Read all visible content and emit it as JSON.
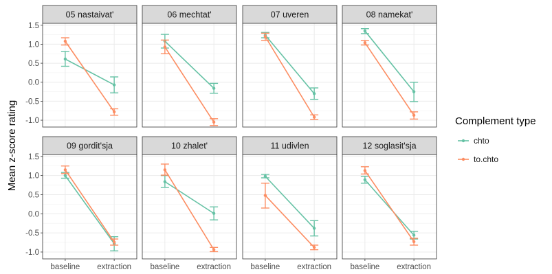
{
  "chart_data": {
    "type": "line",
    "ylabel": "Mean z-score rating",
    "xlabel": "",
    "categories": [
      "baseline",
      "extraction"
    ],
    "y_ticks": [
      1.5,
      1.0,
      0.5,
      0.0,
      -0.5,
      -1.0
    ],
    "y_tick_labels": [
      "1.5",
      "1.0",
      "0.5",
      "0.0",
      "-0.5",
      "-1.0"
    ],
    "ylim": [
      -1.18,
      1.55
    ],
    "grid": true,
    "legend": {
      "title": "Complement type",
      "position": "right",
      "entries": [
        "chto",
        "to.chto"
      ]
    },
    "colors": {
      "chto": "#66c2a5",
      "to.chto": "#fc8d62"
    },
    "panels": [
      {
        "title": "05 nastaivat'",
        "series": [
          {
            "name": "chto",
            "values": [
              0.61,
              -0.07
            ],
            "lower": [
              0.42,
              -0.28
            ],
            "upper": [
              0.81,
              0.14
            ]
          },
          {
            "name": "to.chto",
            "values": [
              1.08,
              -0.78
            ],
            "lower": [
              0.98,
              -0.87
            ],
            "upper": [
              1.17,
              -0.7
            ]
          }
        ]
      },
      {
        "title": "06 mechtat'",
        "series": [
          {
            "name": "chto",
            "values": [
              1.08,
              -0.16
            ],
            "lower": [
              0.9,
              -0.29
            ],
            "upper": [
              1.26,
              -0.03
            ]
          },
          {
            "name": "to.chto",
            "values": [
              0.93,
              -1.05
            ],
            "lower": [
              0.75,
              -1.14
            ],
            "upper": [
              1.11,
              -0.96
            ]
          }
        ]
      },
      {
        "title": "07 uveren",
        "series": [
          {
            "name": "chto",
            "values": [
              1.24,
              -0.3
            ],
            "lower": [
              1.17,
              -0.45
            ],
            "upper": [
              1.31,
              -0.15
            ]
          },
          {
            "name": "to.chto",
            "values": [
              1.2,
              -0.92
            ],
            "lower": [
              1.1,
              -0.98
            ],
            "upper": [
              1.29,
              -0.86
            ]
          }
        ]
      },
      {
        "title": "08 namekat'",
        "series": [
          {
            "name": "chto",
            "values": [
              1.35,
              -0.25
            ],
            "lower": [
              1.28,
              -0.51
            ],
            "upper": [
              1.41,
              0.0
            ]
          },
          {
            "name": "to.chto",
            "values": [
              1.04,
              -0.87
            ],
            "lower": [
              0.98,
              -0.97
            ],
            "upper": [
              1.1,
              -0.78
            ]
          }
        ]
      },
      {
        "title": "09 gordit'sja",
        "series": [
          {
            "name": "chto",
            "values": [
              1.0,
              -0.78
            ],
            "lower": [
              0.93,
              -0.97
            ],
            "upper": [
              1.08,
              -0.6
            ]
          },
          {
            "name": "to.chto",
            "values": [
              1.15,
              -0.74
            ],
            "lower": [
              1.05,
              -0.82
            ],
            "upper": [
              1.25,
              -0.66
            ]
          }
        ]
      },
      {
        "title": "10 zhalet'",
        "series": [
          {
            "name": "chto",
            "values": [
              0.84,
              0.01
            ],
            "lower": [
              0.69,
              -0.16
            ],
            "upper": [
              1.0,
              0.18
            ]
          },
          {
            "name": "to.chto",
            "values": [
              1.15,
              -0.94
            ],
            "lower": [
              1.01,
              -0.99
            ],
            "upper": [
              1.3,
              -0.88
            ]
          }
        ]
      },
      {
        "title": "11 udivlen",
        "series": [
          {
            "name": "chto",
            "values": [
              0.98,
              -0.38
            ],
            "lower": [
              0.94,
              -0.58
            ],
            "upper": [
              1.03,
              -0.18
            ]
          },
          {
            "name": "to.chto",
            "values": [
              0.48,
              -0.88
            ],
            "lower": [
              0.15,
              -0.94
            ],
            "upper": [
              0.8,
              -0.82
            ]
          }
        ]
      },
      {
        "title": "12 soglasit'sja",
        "series": [
          {
            "name": "chto",
            "values": [
              0.89,
              -0.56
            ],
            "lower": [
              0.8,
              -0.66
            ],
            "upper": [
              0.98,
              -0.46
            ]
          },
          {
            "name": "to.chto",
            "values": [
              1.13,
              -0.73
            ],
            "lower": [
              1.04,
              -0.82
            ],
            "upper": [
              1.23,
              -0.64
            ]
          }
        ]
      }
    ]
  }
}
